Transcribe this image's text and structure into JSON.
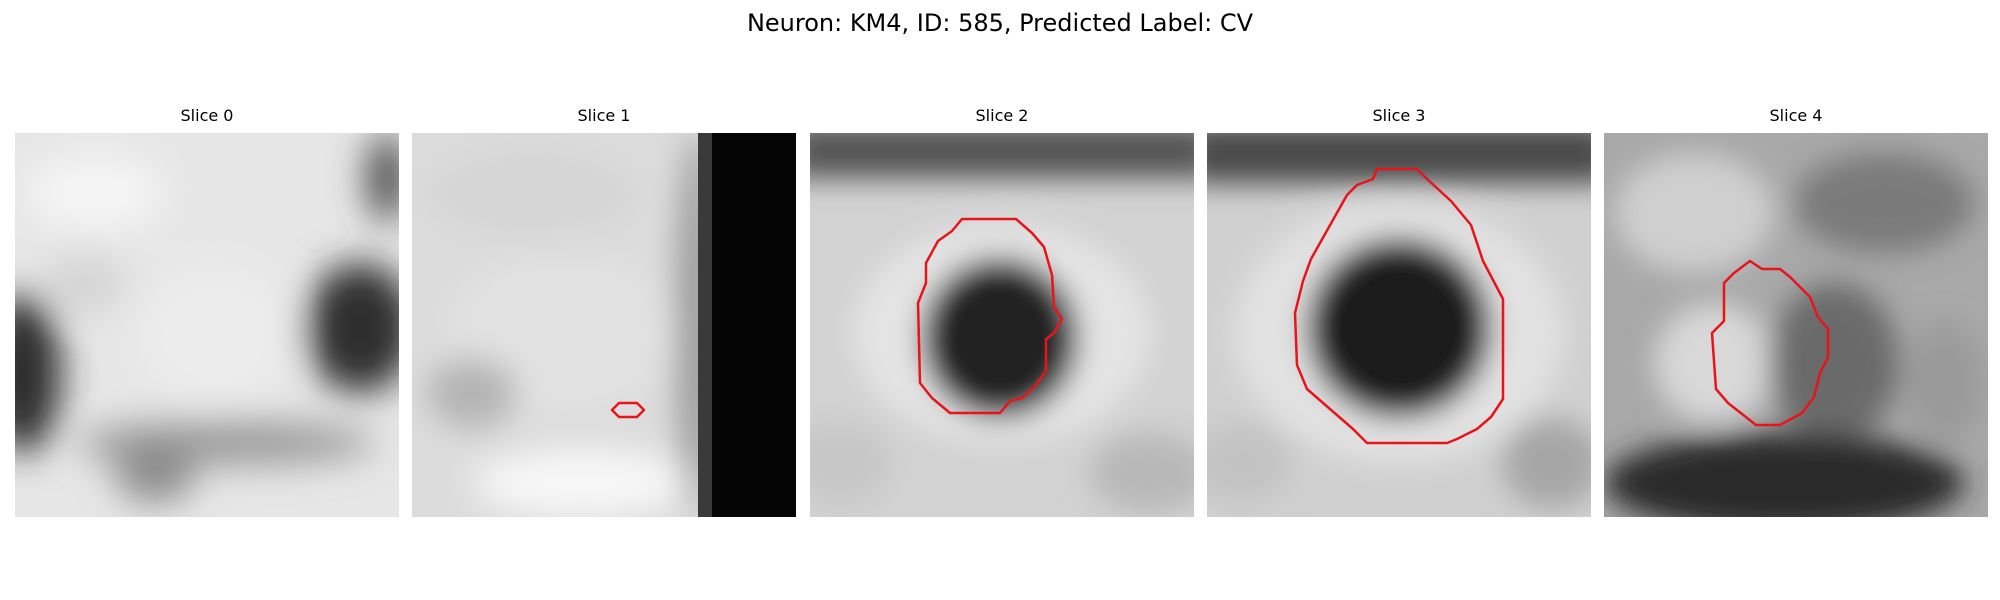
{
  "figure": {
    "title": "Neuron: KM4, ID: 585, Predicted Label: CV"
  },
  "panels": [
    {
      "title": "Slice 0",
      "has_contour": false
    },
    {
      "title": "Slice 1",
      "has_contour": true
    },
    {
      "title": "Slice 2",
      "has_contour": true
    },
    {
      "title": "Slice 3",
      "has_contour": true
    },
    {
      "title": "Slice 4",
      "has_contour": true
    }
  ],
  "colors": {
    "contour": "#e8141b",
    "background": "#ffffff",
    "text": "#000000"
  }
}
